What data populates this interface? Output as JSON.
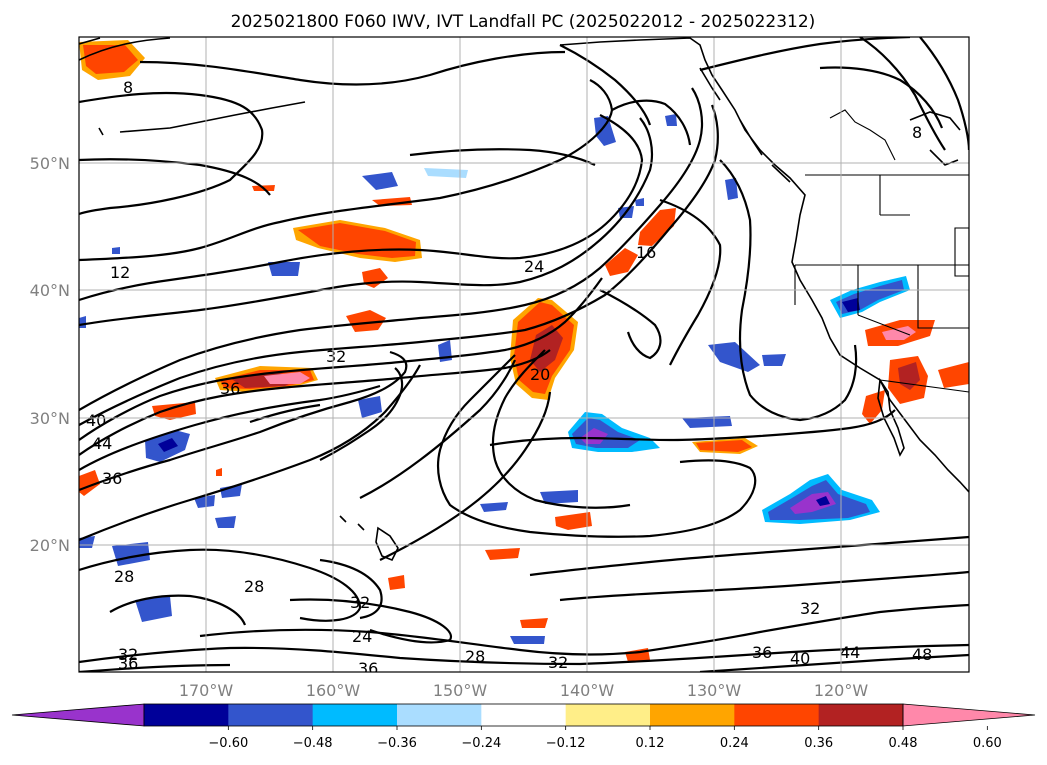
{
  "title": "2025021800 F060 IWV, IVT Landfall PC (2025022012 - 2025022312)",
  "lat_labels": [
    "50°N",
    "40°N",
    "30°N",
    "20°N"
  ],
  "lon_labels": [
    "170°W",
    "160°W",
    "150°W",
    "140°W",
    "130°W",
    "120°W"
  ],
  "colorbar": {
    "ticks": [
      "−0.60",
      "−0.48",
      "−0.36",
      "−0.24",
      "−0.12",
      "0.12",
      "0.24",
      "0.36",
      "0.48",
      "0.60"
    ],
    "colors": [
      "#9933cc",
      "#000099",
      "#3355cc",
      "#00bbff",
      "#aaddff",
      "#ffffff",
      "#ffee88",
      "#ffa500",
      "#ff4500",
      "#b22222",
      "#ff88aa"
    ]
  },
  "contour_labels": [
    "8",
    "8",
    "12",
    "24",
    "16",
    "32",
    "36",
    "20",
    "40",
    "44",
    "36",
    "28",
    "28",
    "32",
    "24",
    "32",
    "36",
    "36",
    "28",
    "32",
    "32",
    "36",
    "40",
    "44",
    "48"
  ]
}
